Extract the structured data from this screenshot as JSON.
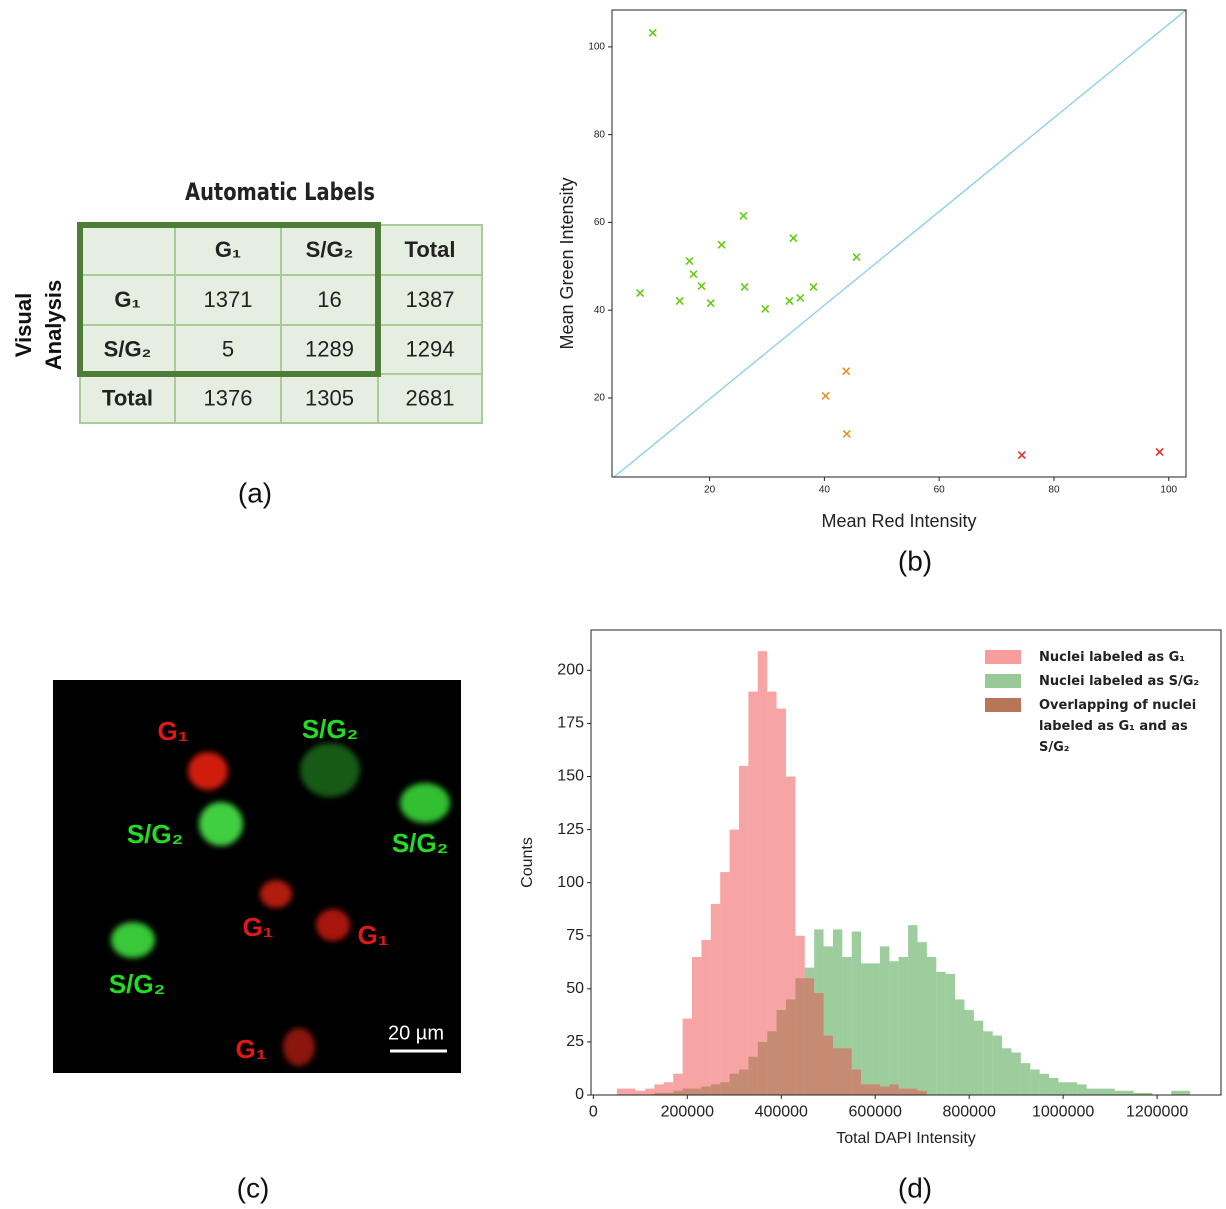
{
  "table": {
    "title": "Automatic Labels",
    "row_title": [
      "Visual",
      "Analysis"
    ],
    "header": [
      "G₁",
      "S/G₂",
      "Total"
    ],
    "rows": [
      [
        "G₁",
        1371,
        16,
        1387
      ],
      [
        "S/G₂",
        5,
        1289,
        1294
      ],
      [
        "Total",
        1376,
        1305,
        2681
      ]
    ]
  },
  "panels": [
    "(a)",
    "(b)",
    "(c)",
    "(d)"
  ],
  "micrograph": {
    "labels": [
      "G₁",
      "S/G₂",
      "S/G₂",
      "S/G₂",
      "G₁",
      "G₁",
      "S/G₂",
      "G₁"
    ],
    "scale_bar": "20 µm"
  },
  "chart_data": [
    {
      "type": "scatter",
      "x_label": "Mean Red Intensity",
      "y_label": "Mean Green Intensity",
      "xlim": [
        3,
        103
      ],
      "ylim": [
        2,
        108.4
      ],
      "xticks": [
        20,
        40,
        60,
        80,
        100
      ],
      "yticks": [
        20,
        40,
        60,
        80,
        100
      ],
      "grid": false,
      "series": [
        {
          "color": "#66cc11",
          "x": [
            10.1,
            7.9,
            14.8,
            16.5,
            17.2,
            18.6,
            20.2,
            22.1,
            25.9,
            26.1,
            29.7,
            33.9,
            34.6,
            35.8,
            38.1,
            45.6
          ],
          "values": [
            103.2,
            43.9,
            42.1,
            51.2,
            48.2,
            45.5,
            41.6,
            54.9,
            61.5,
            45.3,
            40.3,
            42.1,
            56.4,
            42.8,
            45.3,
            52.1
          ]
        },
        {
          "color": "#e8902a",
          "x": [
            43.8,
            40.2,
            43.9
          ],
          "values": [
            26.1,
            20.5,
            11.8
          ]
        },
        {
          "color": "#e03030",
          "x": [
            74.4,
            98.4
          ],
          "values": [
            7.0,
            7.7
          ]
        }
      ]
    },
    {
      "type": "histogram",
      "x_label": "Total DAPI Intensity",
      "y_label": "Counts",
      "xlim": [
        -5000,
        1336000
      ],
      "ylim": [
        0,
        219
      ],
      "xticks": [
        0,
        200000,
        400000,
        600000,
        800000,
        1000000,
        1200000
      ],
      "yticks": [
        0,
        25,
        50,
        75,
        100,
        125,
        150,
        175,
        200
      ],
      "legend": "upper right",
      "bins": [
        50000,
        70000,
        90000,
        110000,
        130000,
        150000,
        170000,
        190000,
        210000,
        230000,
        250000,
        270000,
        290000,
        310000,
        330000,
        350000,
        370000,
        390000,
        410000,
        430000,
        450000,
        470000,
        490000,
        510000,
        530000,
        550000,
        570000,
        590000,
        610000,
        630000,
        650000,
        670000,
        690000,
        710000,
        730000,
        750000,
        770000,
        790000,
        810000,
        830000,
        850000,
        870000,
        890000,
        910000,
        930000,
        950000,
        970000,
        990000,
        1010000,
        1030000,
        1050000,
        1070000,
        1090000,
        1110000,
        1130000,
        1150000,
        1170000,
        1190000,
        1210000,
        1230000,
        1250000,
        1270000,
        1290000
      ],
      "series": [
        {
          "name": "Nuclei labeled as G₁",
          "color": "#ee4a4a",
          "values": [
            3,
            3,
            2,
            3,
            5,
            6,
            10,
            36,
            65,
            73,
            90,
            105,
            125,
            155,
            190,
            209,
            190,
            182,
            150,
            75,
            55,
            48,
            28,
            22,
            22,
            12,
            5,
            5,
            4,
            5,
            3,
            3,
            2,
            0,
            0,
            0,
            0,
            0,
            0,
            0,
            0,
            0,
            0,
            0,
            0,
            0,
            0,
            0,
            0,
            0,
            0,
            0,
            0,
            0,
            0,
            0,
            0,
            0,
            0,
            0,
            0,
            0
          ]
        },
        {
          "name": "Nuclei labeled as S/G₂",
          "color": "#3c9c3c",
          "values": [
            0,
            0,
            0,
            0,
            1,
            1,
            2,
            3,
            3,
            4,
            5,
            6,
            10,
            12,
            18,
            25,
            30,
            40,
            45,
            55,
            60,
            78,
            70,
            78,
            65,
            77,
            62,
            62,
            70,
            63,
            65,
            80,
            72,
            65,
            58,
            57,
            45,
            40,
            35,
            30,
            28,
            22,
            20,
            15,
            12,
            10,
            8,
            6,
            6,
            5,
            3,
            3,
            3,
            2,
            2,
            1,
            1,
            0,
            0,
            2,
            2,
            0
          ]
        }
      ],
      "overlap": {
        "name": "Overlapping of nuclei labeled as G₁ and as S/G₂",
        "color": "#b87558"
      }
    }
  ]
}
